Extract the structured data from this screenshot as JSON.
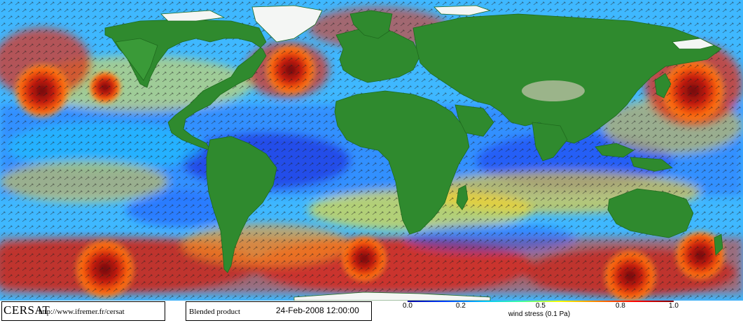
{
  "map": {
    "type": "global-wind-stress-field",
    "projection": "equirectangular",
    "colors": {
      "ocean_low": "#1a3cff",
      "ocean_mid": "#22e0ff",
      "ocean_yellow": "#f2ff2a",
      "ocean_high": "#e51a00",
      "land": "#2f8a2e",
      "ice": "#ffffff"
    }
  },
  "footer": {
    "brand": "CERSAT",
    "url": "http://www.ifremer.fr/cersat",
    "product": "Blended product",
    "date": "24-Feb-2008 12:00:00"
  },
  "colorbar": {
    "ticks": [
      "0.0",
      "0.2",
      "0.5",
      "0.8",
      "1.0"
    ],
    "tick_values": [
      0.0,
      0.2,
      0.5,
      0.8,
      1.0
    ],
    "label": "wind stress (0.1 Pa)",
    "range": [
      0.0,
      1.0
    ]
  }
}
